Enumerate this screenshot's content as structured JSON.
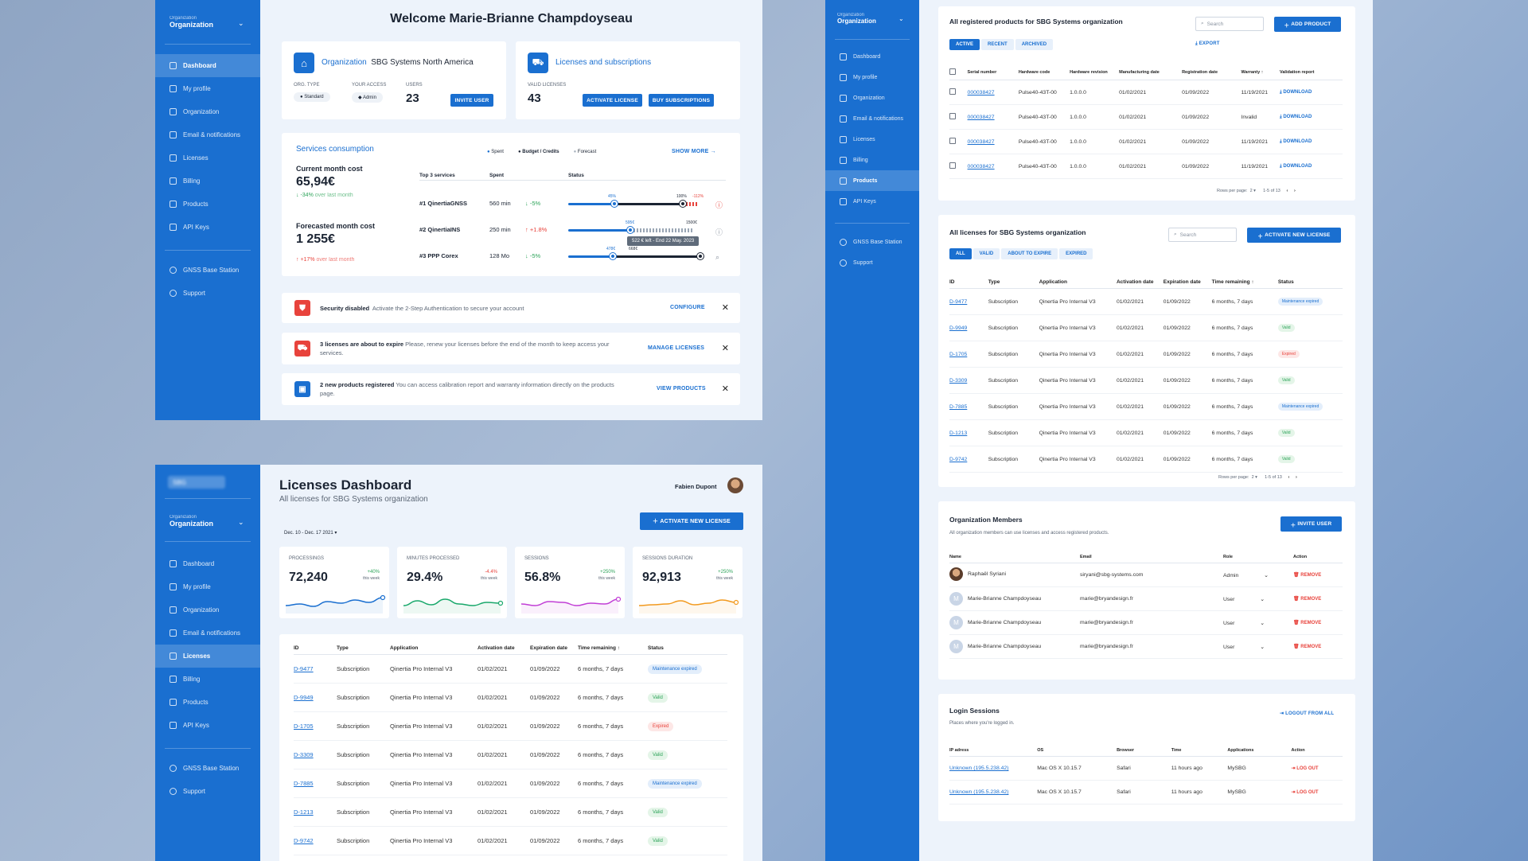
{
  "sidebar": {
    "org_label": "Organization",
    "org_value": "Organization",
    "logo_text": "SBG",
    "items": [
      "Dashboard",
      "My profile",
      "Organization",
      "Email & notifications",
      "Licenses",
      "Billing",
      "Products",
      "API Keys"
    ],
    "extra": [
      "GNSS Base Station",
      "Support"
    ]
  },
  "s1": {
    "welcome": "Welcome Marie-Brianne Champdoyseau",
    "org": {
      "title": "Organization",
      "name": "SBG Systems North America",
      "type_label": "ORG. TYPE",
      "type": "Standard",
      "access_label": "YOUR ACCESS",
      "access": "Admin",
      "users_label": "USERS",
      "users": "23",
      "invite": "INVITE USER"
    },
    "lic": {
      "title": "Licenses and subscriptions",
      "valid_label": "VALID LICENSES",
      "valid": "43",
      "activate": "ACTIVATE LICENSE",
      "buy": "BUY SUBSCRIPTIONS"
    },
    "cons": {
      "title": "Services consumption",
      "legend": [
        "Spent",
        "Budget / Credits",
        "Forecast"
      ],
      "show_more": "SHOW MORE",
      "cur_label": "Current month cost",
      "cur": "65,94€",
      "cur_delta": "-34%",
      "cur_note": "over last month",
      "fc_label": "Forecasted month cost",
      "fc": "1 255€",
      "fc_delta": "+17%",
      "fc_note": "over last month",
      "cols": [
        "Top 3 services",
        "Spent",
        "Status"
      ],
      "rows": [
        {
          "name": "#1 QinertiaGNSS",
          "spent": "560 min",
          "delta": "-5%",
          "a": "45%",
          "b": "100%",
          "c": "-112%"
        },
        {
          "name": "#2 QinertiaINS",
          "spent": "250 min",
          "delta": "+1.8%",
          "a": "595€",
          "b": "1500€",
          "c": ""
        },
        {
          "name": "#3 PPP Corex",
          "spent": "128 Mo",
          "delta": "-5%",
          "a": "478€",
          "b": "668€",
          "c": ""
        }
      ],
      "tooltip": "522 € left - End 22 May. 2023"
    },
    "alerts": [
      {
        "bold": "Security disabled",
        "text": "Activate the 2-Step Authentication to secure your account",
        "action": "CONFIGURE"
      },
      {
        "bold": "3 licenses are about to expire",
        "text": "Please, renew your licenses before the end of the month to keep access your services.",
        "action": "MANAGE LICENSES"
      },
      {
        "bold": "2 new products registered",
        "text": "You can access calibration report and warranty information directly on the products page.",
        "action": "VIEW PRODUCTS"
      }
    ]
  },
  "s2": {
    "title": "Licenses Dashboard",
    "subtitle": "All licenses for SBG Systems organization",
    "user": "Fabien Dupont",
    "activate": "ACTIVATE NEW LICENSE",
    "date": "Dec. 10 - Dec. 17 2021",
    "stats": [
      {
        "label": "PROCESSINGS",
        "value": "72,240",
        "delta": "+40%",
        "note": "this week",
        "color": "#1a6fd0"
      },
      {
        "label": "MINUTES PROCESSED",
        "value": "29.4%",
        "delta": "-4.4%",
        "note": "this week",
        "color": "#19a86b"
      },
      {
        "label": "SESSIONS",
        "value": "56.8%",
        "delta": "+250%",
        "note": "this week",
        "color": "#c13fd6"
      },
      {
        "label": "SESSIONS DURATION",
        "value": "92,913",
        "delta": "+250%",
        "note": "this week",
        "color": "#f29a1f"
      }
    ],
    "cols": [
      "ID",
      "Type",
      "Application",
      "Activation date",
      "Expiration date",
      "Time remaining",
      "Status"
    ]
  },
  "licenses": [
    {
      "id": "D-9477",
      "type": "Subscription",
      "app": "Qinertia Pro Internal V3",
      "act": "01/02/2021",
      "exp": "01/09/2022",
      "rem": "6 months, 7 days",
      "status": "Maintenance expired",
      "cls": "b-maint"
    },
    {
      "id": "D-9949",
      "type": "Subscription",
      "app": "Qinertia Pro Internal V3",
      "act": "01/02/2021",
      "exp": "01/09/2022",
      "rem": "6 months, 7 days",
      "status": "Valid",
      "cls": "b-valid"
    },
    {
      "id": "D-1705",
      "type": "Subscription",
      "app": "Qinertia Pro Internal V3",
      "act": "01/02/2021",
      "exp": "01/09/2022",
      "rem": "6 months, 7 days",
      "status": "Expired",
      "cls": "b-exp"
    },
    {
      "id": "D-3309",
      "type": "Subscription",
      "app": "Qinertia Pro Internal V3",
      "act": "01/02/2021",
      "exp": "01/09/2022",
      "rem": "6 months, 7 days",
      "status": "Valid",
      "cls": "b-valid"
    },
    {
      "id": "D-7885",
      "type": "Subscription",
      "app": "Qinertia Pro Internal V3",
      "act": "01/02/2021",
      "exp": "01/09/2022",
      "rem": "6 months, 7 days",
      "status": "Maintenance expired",
      "cls": "b-maint"
    },
    {
      "id": "D-1213",
      "type": "Subscription",
      "app": "Qinertia Pro Internal V3",
      "act": "01/02/2021",
      "exp": "01/09/2022",
      "rem": "6 months, 7 days",
      "status": "Valid",
      "cls": "b-valid"
    },
    {
      "id": "D-9742",
      "type": "Subscription",
      "app": "Qinertia Pro Internal V3",
      "act": "01/02/2021",
      "exp": "01/09/2022",
      "rem": "6 months, 7 days",
      "status": "Valid",
      "cls": "b-valid"
    }
  ],
  "s3": {
    "prod": {
      "title": "All registered products for SBG Systems organization",
      "search": "Search",
      "add": "ADD PRODUCT",
      "tabs": [
        "ACTIVE",
        "RECENT",
        "ARCHIVED"
      ],
      "export": "EXPORT",
      "cols": [
        "Serial number",
        "Hardware code",
        "Hardware revision",
        "Manufacturing date",
        "Registration date",
        "Warranty",
        "Validation report"
      ],
      "rows": [
        {
          "sn": "000038427",
          "hw": "Pulse40-43T-00",
          "rev": "1.0.0.0",
          "mfg": "01/02/2021",
          "reg": "01/09/2022",
          "war": "11/19/2021",
          "rep": "DOWNLOAD"
        },
        {
          "sn": "000038427",
          "hw": "Pulse40-43T-00",
          "rev": "1.0.0.0",
          "mfg": "01/02/2021",
          "reg": "01/09/2022",
          "war": "Invalid",
          "rep": "DOWNLOAD"
        },
        {
          "sn": "000038427",
          "hw": "Pulse40-43T-00",
          "rev": "1.0.0.0",
          "mfg": "01/02/2021",
          "reg": "01/09/2022",
          "war": "11/19/2021",
          "rep": "DOWNLOAD"
        },
        {
          "sn": "000038427",
          "hw": "Pulse40-43T-00",
          "rev": "1.0.0.0",
          "mfg": "01/02/2021",
          "reg": "01/09/2022",
          "war": "11/19/2021",
          "rep": "DOWNLOAD"
        }
      ],
      "pager_label": "Rows per page:",
      "pager_n": "2",
      "pager_range": "1-5 of 13"
    },
    "lic": {
      "title": "All licenses for SBG Systems organization",
      "search": "Search",
      "activate": "ACTIVATE NEW LICENSE",
      "tabs": [
        "ALL",
        "VALID",
        "ABOUT TO EXPIRE",
        "EXPIRED"
      ],
      "pager_label": "Rows per page:",
      "pager_n": "2",
      "pager_range": "1-5 of 13"
    },
    "mem": {
      "title": "Organization Members",
      "subtitle": "All organization members can use licenses and access registered products.",
      "invite": "INVITE USER",
      "cols": [
        "Name",
        "Email",
        "Role",
        "Action"
      ],
      "rows": [
        {
          "name": "Raphaël Syriani",
          "email": "siryani@sbg-systems.com",
          "role": "Admin",
          "action": "REMOVE"
        },
        {
          "name": "Marie-Brianne Champdoyseau",
          "email": "marie@bryandesign.fr",
          "role": "User",
          "action": "REMOVE"
        },
        {
          "name": "Marie-Brianne Champdoyseau",
          "email": "marie@bryandesign.fr",
          "role": "User",
          "action": "REMOVE"
        },
        {
          "name": "Marie-Brianne Champdoyseau",
          "email": "marie@bryandesign.fr",
          "role": "User",
          "action": "REMOVE"
        }
      ]
    },
    "sess": {
      "title": "Login Sessions",
      "subtitle": "Places where you're logged in.",
      "logout_all": "LOGOUT FROM ALL",
      "cols": [
        "IP adress",
        "OS",
        "Browser",
        "Time",
        "Applications",
        "Action"
      ],
      "rows": [
        {
          "ip": "Unknown (195.5.238.42)",
          "os": "Mac OS X 10.15.7",
          "br": "Safari",
          "time": "11 hours ago",
          "app": "MySBG",
          "action": "LOG OUT"
        },
        {
          "ip": "Unknown (195.5.238.42)",
          "os": "Mac OS X 10.15.7",
          "br": "Safari",
          "time": "11 hours ago",
          "app": "MySBG",
          "action": "LOG OUT"
        }
      ]
    }
  }
}
